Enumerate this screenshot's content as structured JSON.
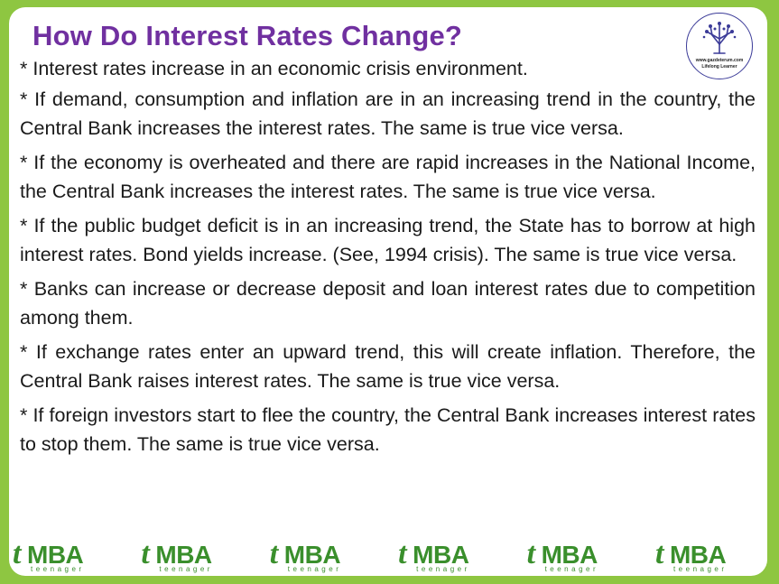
{
  "title": "How Do Interest Rates Change?",
  "logo": {
    "url_text": "www.gazdeterum.com",
    "tagline": "Lifelong Learner"
  },
  "paragraphs": [
    "* Interest rates increase in an economic crisis environment.",
    "* If demand, consumption and inflation are in an increasing trend in the country, the Central Bank increases the interest rates. The same is true vice versa.",
    "* If the economy is overheated and there are rapid increases in the National Income, the Central Bank increases the interest rates. The same is true vice versa.",
    "* If the public budget deficit is in an increasing trend, the State has to borrow at high interest rates. Bond yields increase. (See, 1994 crisis). The same is true vice versa.",
    "* Banks can increase or decrease deposit and loan interest rates due to competition among them.",
    "* If exchange rates enter an upward trend, this will create inflation. Therefore, the Central Bank raises interest rates. The same is true vice versa.",
    "* If foreign investors start to flee the country, the Central Bank increases interest rates to stop them. The same is true vice versa."
  ],
  "footer": {
    "brand_t": "t",
    "brand_mba": "MBA",
    "brand_sub": "teenager",
    "repeat_count": 6
  },
  "colors": {
    "background": "#8ec641",
    "title": "#7030a0",
    "brand": "#3a8f2c"
  }
}
